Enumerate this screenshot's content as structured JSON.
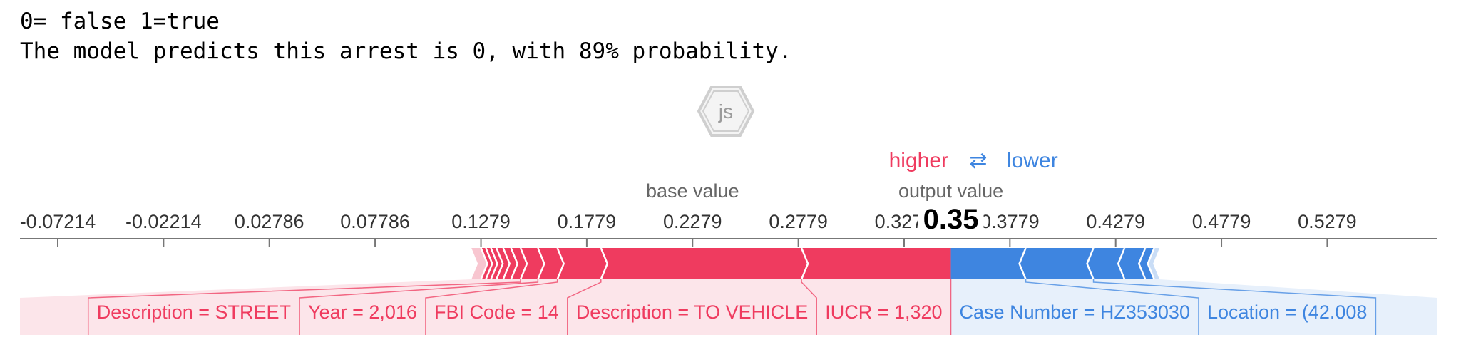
{
  "header": {
    "line1": "0= false 1=true",
    "line2": "The model predicts this arrest is 0, with 89% probability."
  },
  "badge": {
    "label": "js"
  },
  "colors": {
    "positive": "#ef3b5f",
    "negative": "#3e85e0",
    "positive_light": "#f8c6d0",
    "negative_light": "#c9ddf6",
    "axis": "#777777"
  },
  "chart_data": {
    "type": "force_plot",
    "legend": {
      "higher": "higher",
      "arrow": "⇄",
      "lower": "lower"
    },
    "base_value_label": "base value",
    "output_value_label": "output value",
    "output_value_text": "0.35",
    "base_value": 0.2279,
    "output_value": 0.35,
    "xlim": [
      -0.09,
      0.58
    ],
    "ticks": [
      {
        "value": -0.07214,
        "label": "-0.07214"
      },
      {
        "value": -0.02214,
        "label": "-0.02214"
      },
      {
        "value": 0.02786,
        "label": "0.02786"
      },
      {
        "value": 0.07786,
        "label": "0.07786"
      },
      {
        "value": 0.1279,
        "label": "0.1279"
      },
      {
        "value": 0.1779,
        "label": "0.1779"
      },
      {
        "value": 0.2279,
        "label": "0.2279"
      },
      {
        "value": 0.2779,
        "label": "0.2779"
      },
      {
        "value": 0.3279,
        "label": "0.3279"
      },
      {
        "value": 0.3779,
        "label": "0.3779"
      },
      {
        "value": 0.4279,
        "label": "0.4279"
      },
      {
        "value": 0.4779,
        "label": "0.4779"
      },
      {
        "value": 0.5279,
        "label": "0.5279"
      }
    ],
    "higher_range": [
      0.1234,
      0.35
    ],
    "lower_range": [
      0.35,
      0.4486
    ],
    "higher_boundaries": [
      0.1234,
      0.1279,
      0.1302,
      0.1326,
      0.1352,
      0.1384,
      0.1421,
      0.1466,
      0.1548,
      0.164,
      0.1846,
      0.2794
    ],
    "lower_boundaries": [
      0.3854,
      0.4174,
      0.4321,
      0.4419,
      0.4461,
      0.4486
    ],
    "higher_features": [
      {
        "label": "Description = STREET",
        "start": 0.1466,
        "end": 0.1548
      },
      {
        "label": "Year = 2,016",
        "start": 0.1548,
        "end": 0.164
      },
      {
        "label": "FBI Code = 14",
        "start": 0.164,
        "end": 0.1846
      },
      {
        "label": "Description = TO VEHICLE",
        "start": 0.1846,
        "end": 0.2794
      },
      {
        "label": "IUCR = 1,320",
        "start": 0.2794,
        "end": 0.35
      }
    ],
    "lower_features": [
      {
        "label": "Case Number = HZ353030",
        "start": 0.35,
        "end": 0.3854
      },
      {
        "label": "Location = (42.008",
        "start": 0.3854,
        "end": 0.4174
      }
    ]
  }
}
